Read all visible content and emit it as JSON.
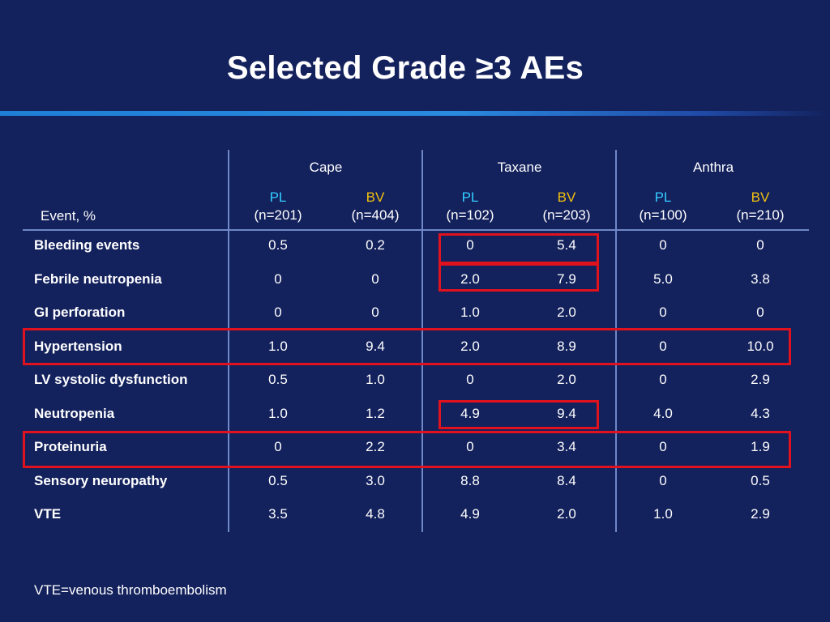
{
  "title": "Selected Grade ≥3 AEs",
  "table": {
    "event_header": "Event, %",
    "groups": [
      "Cape",
      "Taxane",
      "Anthra"
    ],
    "subcolumns": [
      {
        "arm": "PL",
        "n": "(n=201)"
      },
      {
        "arm": "BV",
        "n": "(n=404)"
      },
      {
        "arm": "PL",
        "n": "(n=102)"
      },
      {
        "arm": "BV",
        "n": "(n=203)"
      },
      {
        "arm": "PL",
        "n": "(n=100)"
      },
      {
        "arm": "BV",
        "n": "(n=210)"
      }
    ],
    "rows": [
      {
        "event": "Bleeding events",
        "values": [
          "0.5",
          "0.2",
          "0",
          "5.4",
          "0",
          "0"
        ]
      },
      {
        "event": "Febrile neutropenia",
        "values": [
          "0",
          "0",
          "2.0",
          "7.9",
          "5.0",
          "3.8"
        ]
      },
      {
        "event": "GI perforation",
        "values": [
          "0",
          "0",
          "1.0",
          "2.0",
          "0",
          "0"
        ]
      },
      {
        "event": "Hypertension",
        "values": [
          "1.0",
          "9.4",
          "2.0",
          "8.9",
          "0",
          "10.0"
        ]
      },
      {
        "event": "LV systolic dysfunction",
        "values": [
          "0.5",
          "1.0",
          "0",
          "2.0",
          "0",
          "2.9"
        ]
      },
      {
        "event": "Neutropenia",
        "values": [
          "1.0",
          "1.2",
          "4.9",
          "9.4",
          "4.0",
          "4.3"
        ]
      },
      {
        "event": "Proteinuria",
        "values": [
          "0",
          "2.2",
          "0",
          "3.4",
          "0",
          "1.9"
        ]
      },
      {
        "event": "Sensory neuropathy",
        "values": [
          "0.5",
          "3.0",
          "8.8",
          "8.4",
          "0",
          "0.5"
        ]
      },
      {
        "event": "VTE",
        "values": [
          "3.5",
          "4.8",
          "4.9",
          "2.0",
          "1.0",
          "2.9"
        ]
      }
    ]
  },
  "colors": {
    "background": "#13215c",
    "pl": "#33ccff",
    "bv": "#f0c010",
    "highlight": "#e0121e"
  },
  "footnote": "VTE=venous thromboembolism"
}
